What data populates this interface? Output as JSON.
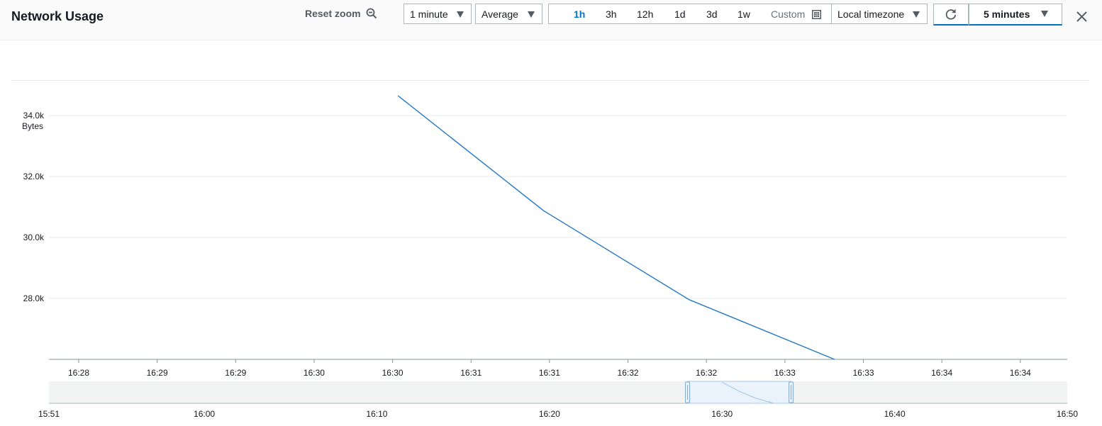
{
  "header": {
    "title": "Network Usage",
    "reset_zoom_label": "Reset zoom",
    "period": "1 minute",
    "statistic": "Average",
    "time_ranges": [
      "1h",
      "3h",
      "12h",
      "1d",
      "3d",
      "1w"
    ],
    "active_range": "1h",
    "custom_label": "Custom",
    "timezone": "Local timezone",
    "refresh_interval": "5 minutes"
  },
  "icons": {
    "reset_zoom": "zoom-out-icon",
    "custom": "calendar-icon",
    "refresh": "refresh-icon",
    "close": "close-icon",
    "dropdown": "caret-down-icon"
  },
  "colors": {
    "series": "#2779c4",
    "accent": "#0073bb"
  },
  "chart_data": {
    "type": "line",
    "ylabel": "Bytes",
    "ylim": [
      26000,
      35000
    ],
    "yticks": [
      28000,
      30000,
      32000,
      34000
    ],
    "ytick_labels": [
      "28.0k",
      "30.0k",
      "32.0k",
      "34.0k"
    ],
    "xlim": [
      "16:27:36",
      "16:34:36"
    ],
    "xtick_labels": [
      "16:28",
      "16:29",
      "16:29",
      "16:30",
      "16:30",
      "16:31",
      "16:31",
      "16:32",
      "16:32",
      "16:33",
      "16:33",
      "16:34",
      "16:34"
    ],
    "grid": true,
    "series": [
      {
        "x": [
          "16:30",
          "16:31",
          "16:32",
          "16:33"
        ],
        "values": [
          34650,
          30880,
          27960,
          26000
        ]
      }
    ],
    "navigator": {
      "xlim": [
        "15:51",
        "16:50"
      ],
      "tick_labels": [
        "15:51",
        "16:00",
        "16:10",
        "16:20",
        "16:30",
        "16:40",
        "16:50"
      ],
      "selection": [
        "16:28",
        "16:34"
      ]
    }
  }
}
